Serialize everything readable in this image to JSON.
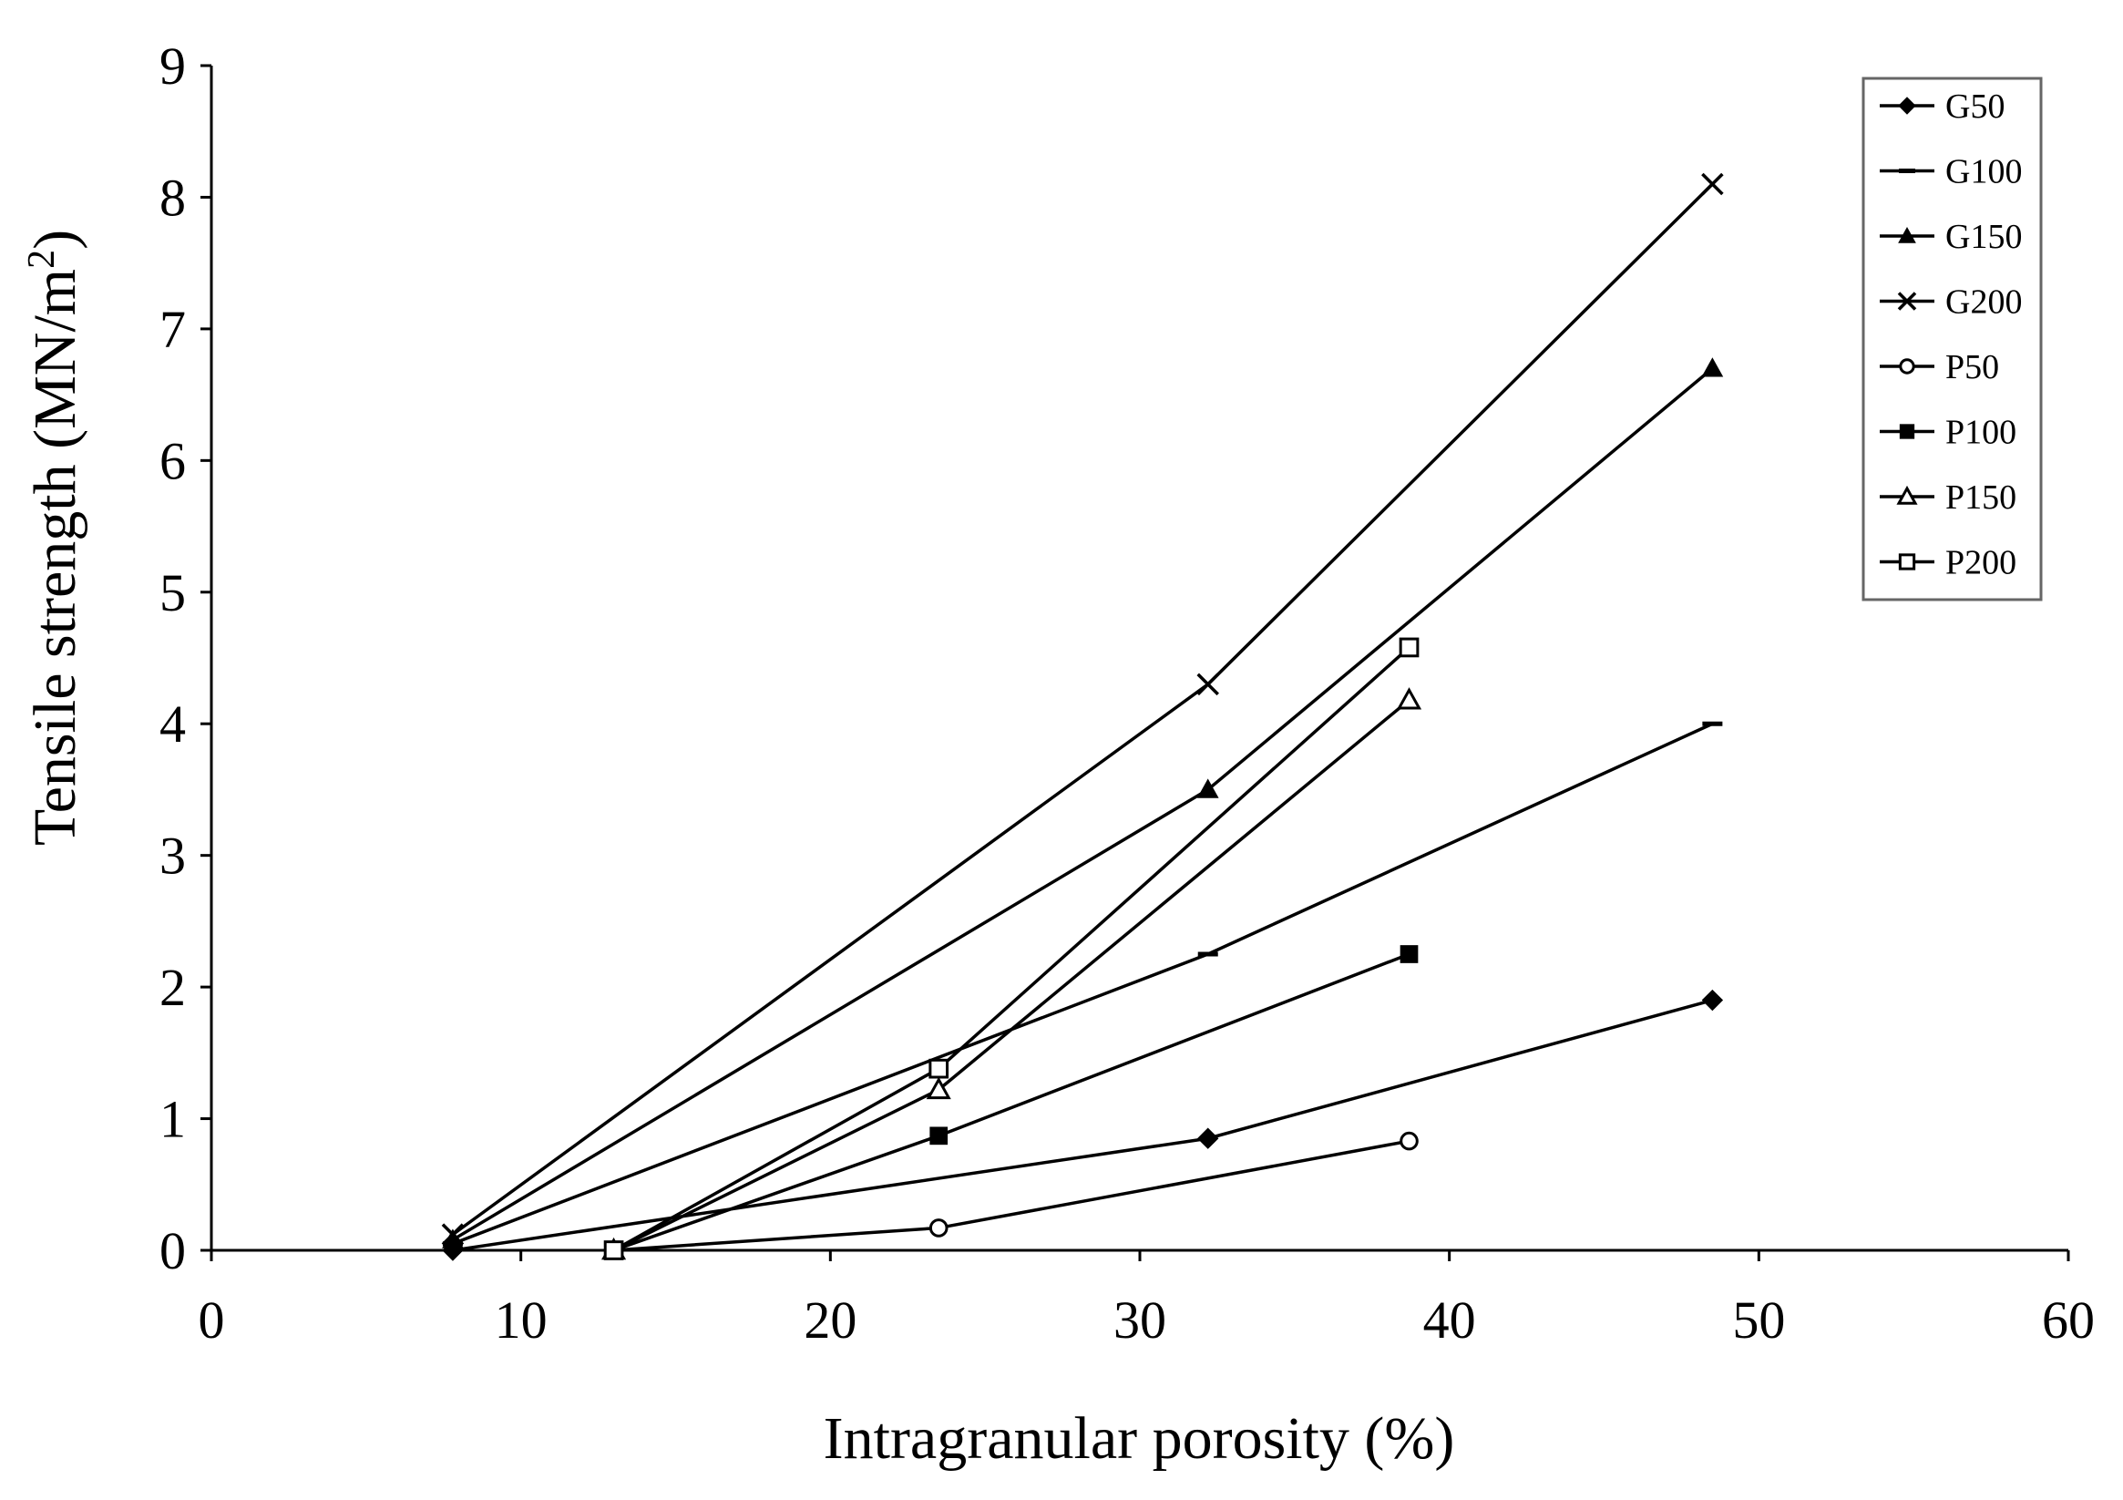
{
  "chart_data": {
    "type": "line",
    "title": "",
    "xlabel": "Intragranular porosity (%)",
    "ylabel": "Tensile strength (MN/m",
    "ylabel_superscript": "2",
    "ylabel_close": ")",
    "xlim": [
      0,
      60
    ],
    "ylim": [
      0,
      9
    ],
    "xticks": [
      0,
      10,
      20,
      30,
      40,
      50,
      60
    ],
    "yticks": [
      0,
      1,
      2,
      3,
      4,
      5,
      6,
      7,
      8,
      9
    ],
    "grid": false,
    "legend_position": "top-right",
    "series": [
      {
        "name": "G50",
        "marker": "diamond-filled",
        "x": [
          7.8,
          32.2,
          48.5
        ],
        "y": [
          0.0,
          0.85,
          1.9
        ]
      },
      {
        "name": "G100",
        "marker": "dash",
        "x": [
          7.8,
          32.2,
          48.5
        ],
        "y": [
          0.05,
          2.25,
          4.0
        ]
      },
      {
        "name": "G150",
        "marker": "triangle-filled",
        "x": [
          7.8,
          32.2,
          48.5
        ],
        "y": [
          0.08,
          3.5,
          6.7
        ]
      },
      {
        "name": "G200",
        "marker": "x",
        "x": [
          7.8,
          32.2,
          48.5
        ],
        "y": [
          0.12,
          4.3,
          8.1
        ]
      },
      {
        "name": "P50",
        "marker": "circle-open",
        "x": [
          13.0,
          23.5,
          38.7
        ],
        "y": [
          0.0,
          0.17,
          0.83
        ]
      },
      {
        "name": "P100",
        "marker": "square-filled",
        "x": [
          13.0,
          23.5,
          38.7
        ],
        "y": [
          0.0,
          0.87,
          2.25
        ]
      },
      {
        "name": "P150",
        "marker": "triangle-open",
        "x": [
          13.0,
          23.5,
          38.7
        ],
        "y": [
          0.0,
          1.22,
          4.18
        ]
      },
      {
        "name": "P200",
        "marker": "square-open",
        "x": [
          13.0,
          23.5,
          38.7
        ],
        "y": [
          0.0,
          1.38,
          4.58
        ]
      }
    ]
  },
  "colors": {
    "line": "#000000",
    "axis": "#000000",
    "background": "#ffffff",
    "legend_border": "#666666"
  }
}
